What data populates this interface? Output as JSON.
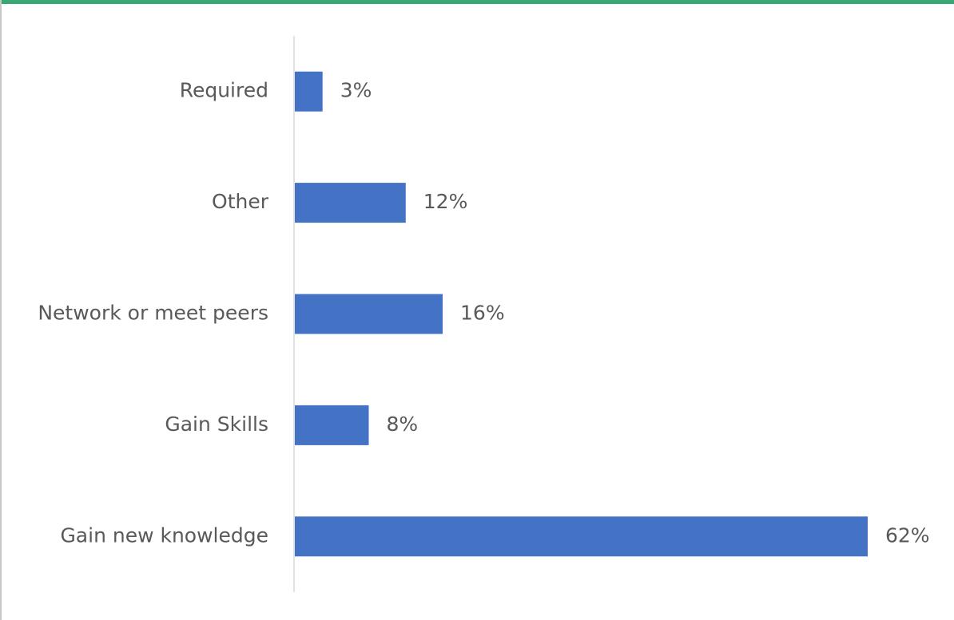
{
  "colors": {
    "bar": "#4472c4",
    "axis": "#d9d9d9",
    "text": "#595959",
    "accent": "#3aa875"
  },
  "chart_data": {
    "type": "bar",
    "orientation": "horizontal",
    "categories": [
      "Required",
      "Other",
      "Network or meet peers",
      "Gain Skills",
      "Gain new knowledge"
    ],
    "values": [
      3,
      12,
      16,
      8,
      62
    ],
    "value_labels": [
      "3%",
      "12%",
      "16%",
      "8%",
      "62%"
    ],
    "unit": "%",
    "xlim": [
      0,
      62
    ],
    "grid": false,
    "legend": "none"
  }
}
